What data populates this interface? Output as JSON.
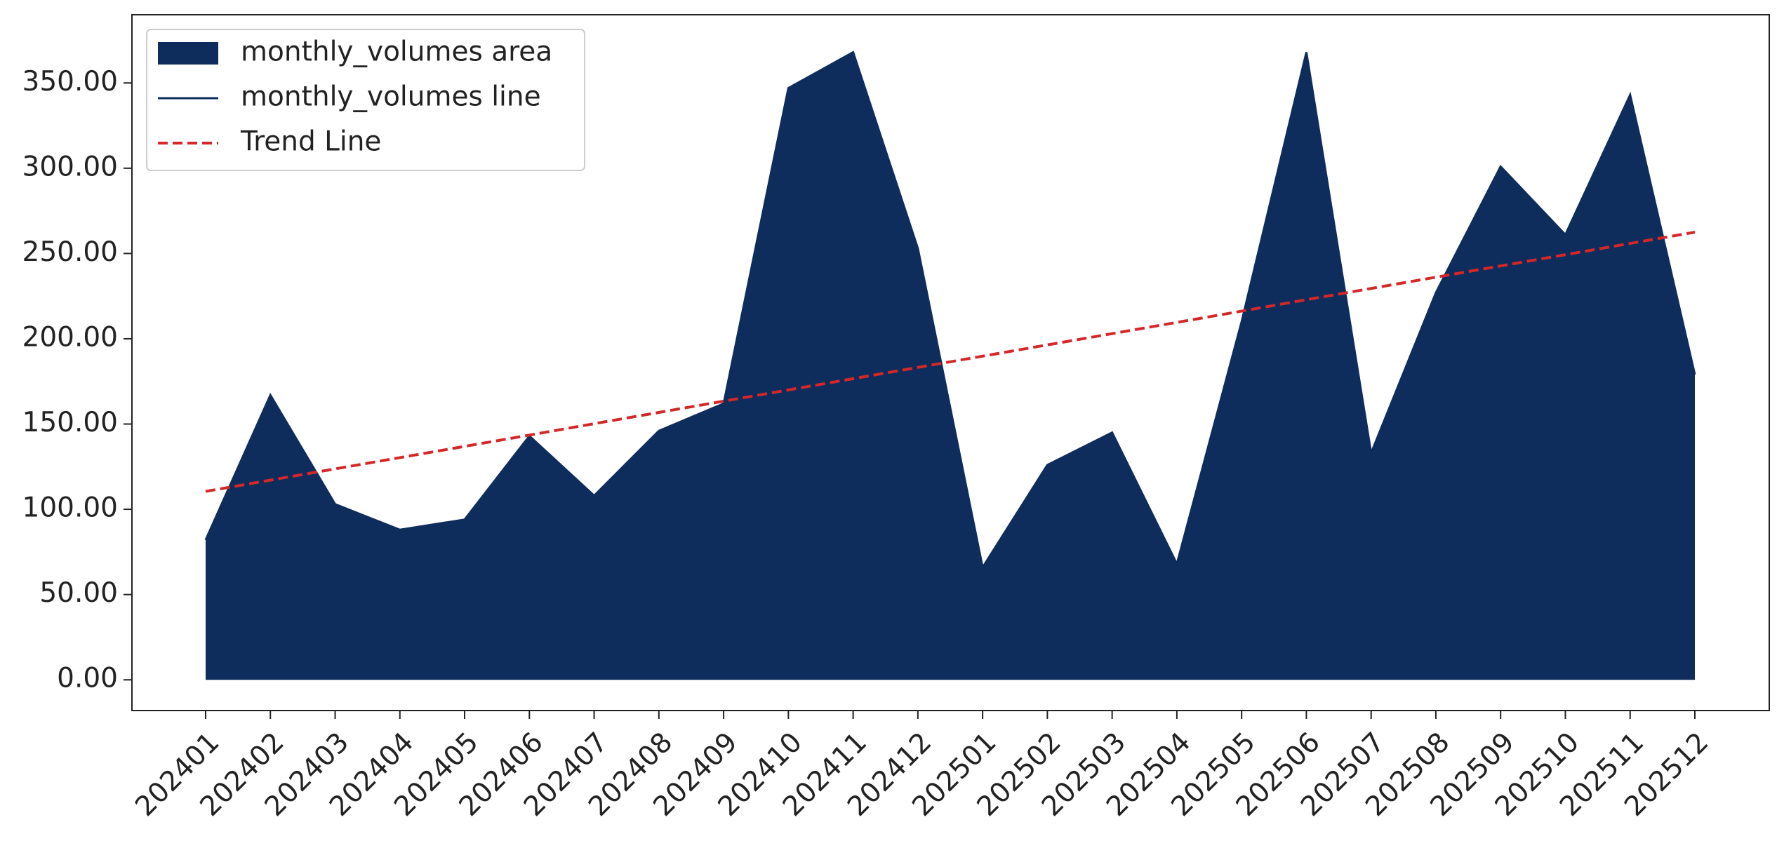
{
  "chart_data": {
    "type": "area",
    "categories": [
      "202401",
      "202402",
      "202403",
      "202404",
      "202405",
      "202406",
      "202407",
      "202408",
      "202409",
      "202410",
      "202411",
      "202412",
      "202501",
      "202502",
      "202503",
      "202504",
      "202505",
      "202506",
      "202507",
      "202508",
      "202509",
      "202510",
      "202511",
      "202512"
    ],
    "series": [
      {
        "name": "monthly_volumes area",
        "color": "#0f2d5c",
        "values": [
          82,
          167,
          103,
          88,
          94,
          143,
          108,
          146,
          162,
          347,
          368,
          253,
          66,
          126,
          145,
          68,
          210,
          368,
          133,
          227,
          301,
          261,
          343,
          179
        ]
      },
      {
        "name": "monthly_volumes line",
        "color": "#0f2d5c",
        "values": [
          82,
          167,
          103,
          88,
          94,
          143,
          108,
          146,
          162,
          347,
          368,
          253,
          66,
          126,
          145,
          68,
          210,
          368,
          133,
          227,
          301,
          261,
          343,
          179
        ]
      },
      {
        "name": "Trend Line",
        "color": "#d62728",
        "dashed": true,
        "values": [
          110.5,
          117.1,
          123.7,
          130.3,
          136.9,
          143.5,
          150.2,
          156.8,
          163.4,
          170.0,
          176.6,
          183.2,
          189.8,
          196.4,
          203.0,
          209.6,
          216.2,
          222.9,
          229.5,
          236.1,
          242.7,
          249.3,
          255.9,
          262.5
        ]
      }
    ],
    "ylim": [
      -18,
      390
    ],
    "yticks": [
      {
        "value": 0,
        "label": "0.00"
      },
      {
        "value": 50,
        "label": "50.00"
      },
      {
        "value": 100,
        "label": "100.00"
      },
      {
        "value": 150,
        "label": "150.00"
      },
      {
        "value": 200,
        "label": "200.00"
      },
      {
        "value": 250,
        "label": "250.00"
      },
      {
        "value": 300,
        "label": "300.00"
      },
      {
        "value": 350,
        "label": "350.00"
      }
    ],
    "legend": "upper left"
  }
}
